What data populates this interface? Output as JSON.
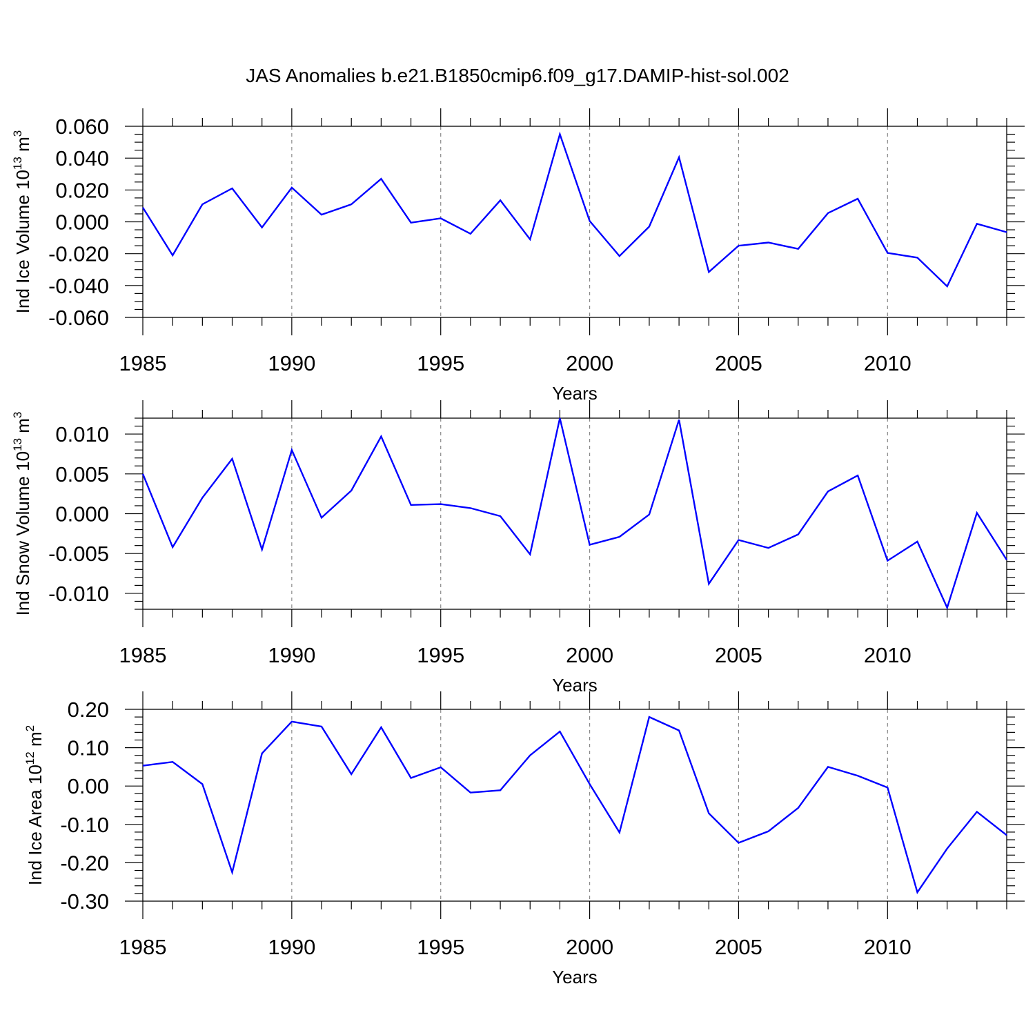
{
  "chart_data": [
    {
      "type": "line",
      "title": "JAS Anomalies b.e21.B1850cmip6.f09_g17.DAMIP-hist-sol.002",
      "ylabel": "Ind Ice Volume 10",
      "ylabel_exp": "13",
      "ylabel_unit": " m",
      "ylabel_unit_exp": "3",
      "xlabel": "Years",
      "xlim": [
        1985,
        2014
      ],
      "ylim": [
        -0.06,
        0.06
      ],
      "yticks": [
        -0.06,
        -0.04,
        -0.02,
        0.0,
        0.02,
        0.04,
        0.06
      ],
      "ytick_labels": [
        "-0.060",
        "-0.040",
        "-0.020",
        "0.000",
        "0.020",
        "0.040",
        "0.060"
      ],
      "ytick_minor_step": 0.005,
      "xticks": [
        1985,
        1990,
        1995,
        2000,
        2005,
        2010
      ],
      "xtick_labels": [
        "1985",
        "1990",
        "1995",
        "2000",
        "2005",
        "2010"
      ],
      "grid": "dashed vertical at major x ticks",
      "color": "#0000ff",
      "x": [
        1985,
        1986,
        1987,
        1988,
        1989,
        1990,
        1991,
        1992,
        1993,
        1994,
        1995,
        1996,
        1997,
        1998,
        1999,
        2000,
        2001,
        2002,
        2003,
        2004,
        2005,
        2006,
        2007,
        2008,
        2009,
        2010,
        2011,
        2012,
        2013,
        2014
      ],
      "values": [
        0.009,
        -0.021,
        0.011,
        0.021,
        -0.0035,
        0.0215,
        0.0045,
        0.011,
        0.027,
        -0.0005,
        0.0022,
        -0.0075,
        0.0135,
        -0.011,
        0.055,
        0.0005,
        -0.0215,
        -0.003,
        0.0405,
        -0.0315,
        -0.015,
        -0.013,
        -0.017,
        0.0055,
        0.0145,
        -0.0195,
        -0.0225,
        -0.0405,
        -0.0012,
        -0.0065
      ]
    },
    {
      "type": "line",
      "ylabel": "Ind Snow Volume 10",
      "ylabel_exp": "13",
      "ylabel_unit": " m",
      "ylabel_unit_exp": "3",
      "xlabel": "Years",
      "xlim": [
        1985,
        2014
      ],
      "ylim": [
        -0.012,
        0.012
      ],
      "yticks": [
        -0.01,
        -0.005,
        0.0,
        0.005,
        0.01
      ],
      "ytick_labels": [
        "-0.010",
        "-0.005",
        "0.000",
        "0.005",
        "0.010"
      ],
      "ytick_minor_step": 0.001,
      "xticks": [
        1985,
        1990,
        1995,
        2000,
        2005,
        2010
      ],
      "xtick_labels": [
        "1985",
        "1990",
        "1995",
        "2000",
        "2005",
        "2010"
      ],
      "grid": "dashed vertical at major x ticks",
      "color": "#0000ff",
      "x": [
        1985,
        1986,
        1987,
        1988,
        1989,
        1990,
        1991,
        1992,
        1993,
        1994,
        1995,
        1996,
        1997,
        1998,
        1999,
        2000,
        2001,
        2002,
        2003,
        2004,
        2005,
        2006,
        2007,
        2008,
        2009,
        2010,
        2011,
        2012,
        2013,
        2014
      ],
      "values": [
        0.005,
        -0.0042,
        0.002,
        0.0069,
        -0.0045,
        0.008,
        -0.0005,
        0.0029,
        0.0097,
        0.0011,
        0.0012,
        0.0007,
        -0.0003,
        -0.0051,
        0.012,
        -0.0039,
        -0.0029,
        -0.0001,
        0.0118,
        -0.0088,
        -0.0033,
        -0.0043,
        -0.0026,
        0.0028,
        0.0048,
        -0.0059,
        -0.0035,
        -0.0118,
        0.0001,
        -0.0058
      ]
    },
    {
      "type": "line",
      "ylabel": "Ind Ice Area 10",
      "ylabel_exp": "12",
      "ylabel_unit": " m",
      "ylabel_unit_exp": "2",
      "xlabel": "Years",
      "xlim": [
        1985,
        2014
      ],
      "ylim": [
        -0.3,
        0.2
      ],
      "yticks": [
        -0.3,
        -0.2,
        -0.1,
        0.0,
        0.1,
        0.2
      ],
      "ytick_labels": [
        "-0.30",
        "-0.20",
        "-0.10",
        "0.00",
        "0.10",
        "0.20"
      ],
      "ytick_minor_step": 0.02,
      "xticks": [
        1985,
        1990,
        1995,
        2000,
        2005,
        2010
      ],
      "xtick_labels": [
        "1985",
        "1990",
        "1995",
        "2000",
        "2005",
        "2010"
      ],
      "grid": "dashed vertical at major x ticks",
      "color": "#0000ff",
      "x": [
        1985,
        1986,
        1987,
        1988,
        1989,
        1990,
        1991,
        1992,
        1993,
        1994,
        1995,
        1996,
        1997,
        1998,
        1999,
        2000,
        2001,
        2002,
        2003,
        2004,
        2005,
        2006,
        2007,
        2008,
        2009,
        2010,
        2011,
        2012,
        2013,
        2014
      ],
      "values": [
        0.053,
        0.063,
        0.005,
        -0.225,
        0.085,
        0.168,
        0.155,
        0.031,
        0.153,
        0.021,
        0.049,
        -0.017,
        -0.011,
        0.08,
        0.142,
        0.005,
        -0.121,
        0.18,
        0.145,
        -0.071,
        -0.148,
        -0.118,
        -0.057,
        0.05,
        0.027,
        -0.004,
        -0.277,
        -0.163,
        -0.067,
        -0.128
      ]
    }
  ]
}
